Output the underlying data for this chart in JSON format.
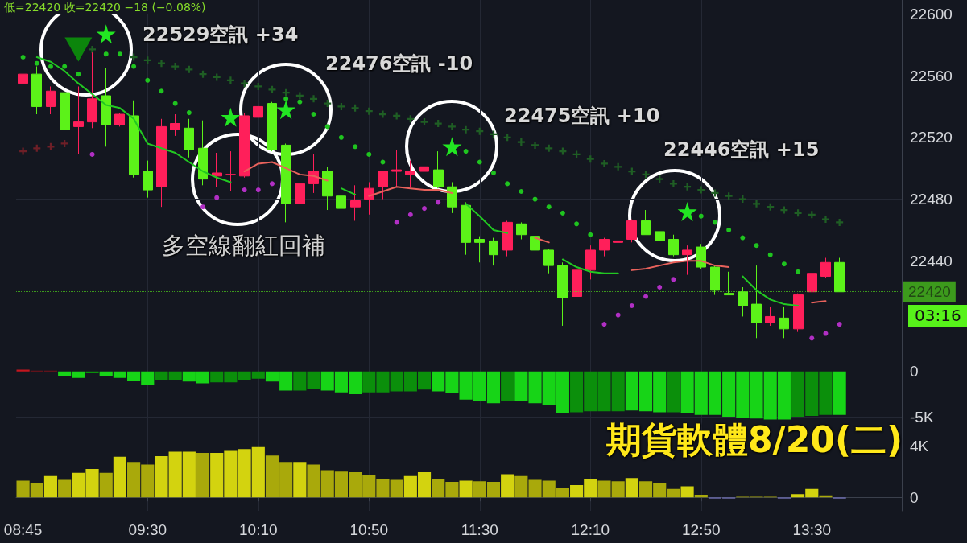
{
  "chart_data": [
    {
      "type": "candlestick",
      "categories": [
        null,
        null,
        null,
        null,
        null,
        null,
        null,
        null,
        null,
        null,
        null,
        null,
        null,
        null,
        null,
        null,
        null,
        null,
        null,
        null,
        null,
        null,
        null,
        null,
        null,
        null,
        null,
        null,
        null,
        null,
        null,
        null,
        null,
        null,
        null,
        null,
        null,
        null,
        null,
        null,
        null,
        null,
        null,
        null,
        null,
        null,
        null,
        null,
        null,
        null,
        null,
        null,
        null,
        null,
        null,
        null,
        null,
        null,
        null,
        null
      ],
      "ohlc": [
        [
          22555,
          22565,
          22528,
          22561
        ],
        [
          22561,
          22566,
          22535,
          22540
        ],
        [
          22540,
          22553,
          22535,
          22550
        ],
        [
          22549,
          22555,
          22519,
          22525
        ],
        [
          22527,
          22553,
          22509,
          22530
        ],
        [
          22530,
          22575,
          22526,
          22545
        ],
        [
          22547,
          22565,
          22514,
          22528
        ],
        [
          22528,
          22536,
          22527,
          22535
        ],
        [
          22534,
          22544,
          22494,
          22496
        ],
        [
          22498,
          22505,
          22481,
          22486
        ],
        [
          22488,
          22532,
          22475,
          22527
        ],
        [
          22525,
          22535,
          22521,
          22529
        ],
        [
          22526,
          22532,
          22507,
          22512
        ],
        [
          22513,
          22531,
          22489,
          22493
        ],
        [
          22495,
          22510,
          22488,
          22497
        ],
        [
          22496,
          22511,
          22485,
          22496
        ],
        [
          22495,
          22536,
          22494,
          22534
        ],
        [
          22533,
          22545,
          22527,
          22540
        ],
        [
          22542,
          22543,
          22511,
          22512
        ],
        [
          22515,
          22516,
          22465,
          22477
        ],
        [
          22477,
          22497,
          22470,
          22490
        ],
        [
          22490,
          22509,
          22484,
          22498
        ],
        [
          22498,
          22501,
          22473,
          22482
        ],
        [
          22482,
          22489,
          22466,
          22474
        ],
        [
          22475,
          22489,
          22466,
          22479
        ],
        [
          22480,
          22491,
          22470,
          22487
        ],
        [
          22488,
          22498,
          22480,
          22498
        ],
        [
          22498,
          22512,
          22488,
          22499
        ],
        [
          22496,
          22505,
          22488,
          22498
        ],
        [
          22498,
          22510,
          22494,
          22501
        ],
        [
          22499,
          22511,
          22487,
          22488
        ],
        [
          22488,
          22491,
          22471,
          22475
        ],
        [
          22476,
          22478,
          22444,
          22452
        ],
        [
          22454,
          22456,
          22439,
          22452
        ],
        [
          22453,
          22455,
          22437,
          22444
        ],
        [
          22447,
          22466,
          22443,
          22465
        ],
        [
          22464,
          22465,
          22454,
          22457
        ],
        [
          22456,
          22457,
          22444,
          22447
        ],
        [
          22447,
          22448,
          22432,
          22437
        ],
        [
          22437,
          22439,
          22398,
          22416
        ],
        [
          22417,
          22435,
          22414,
          22434
        ],
        [
          22434,
          22450,
          22428,
          22447
        ],
        [
          22447,
          22455,
          22443,
          22454
        ],
        [
          22452,
          22462,
          22451,
          22453
        ],
        [
          22454,
          22467,
          22452,
          22466
        ],
        [
          22466,
          22473,
          22457,
          22457
        ],
        [
          22459,
          22465,
          22453,
          22453
        ],
        [
          22454,
          22457,
          22443,
          22444
        ],
        [
          22444,
          22450,
          22431,
          22447
        ],
        [
          22449,
          22451,
          22435,
          22436
        ],
        [
          22436,
          22437,
          22418,
          22421
        ],
        [
          22419,
          22433,
          22418,
          22418
        ],
        [
          22420,
          22423,
          22404,
          22411
        ],
        [
          22412,
          22437,
          22390,
          22400
        ],
        [
          22400,
          22410,
          22398,
          22404
        ],
        [
          22403,
          22410,
          22390,
          22396
        ],
        [
          22396,
          22419,
          22394,
          22418
        ],
        [
          22420,
          22433,
          22413,
          22432
        ],
        [
          22430,
          22442,
          22429,
          22439
        ],
        [
          22439,
          22442,
          22420,
          22420
        ]
      ],
      "colors": [
        "#ff1f5a",
        "#5cf219",
        "#ff1f5a",
        "#5cf219",
        "#ff1f5a",
        "#ff1f5a",
        "#5cf219",
        "#ff1f5a",
        "#5cf219",
        "#5cf219",
        "#ff1f5a",
        "#ff1f5a",
        "#5cf219",
        "#5cf219",
        "#ff1f5a",
        "#ff1f5a",
        "#ff1f5a",
        "#ff1f5a",
        "#5cf219",
        "#5cf219",
        "#ff1f5a",
        "#ff1f5a",
        "#5cf219",
        "#5cf219",
        "#ff1f5a",
        "#ff1f5a",
        "#ff1f5a",
        "#ff1f5a",
        "#ff1f5a",
        "#ff1f5a",
        "#5cf219",
        "#5cf219",
        "#5cf219",
        "#5cf219",
        "#5cf219",
        "#ff1f5a",
        "#5cf219",
        "#5cf219",
        "#5cf219",
        "#5cf219",
        "#ff1f5a",
        "#ff1f5a",
        "#ff1f5a",
        "#ff1f5a",
        "#ff1f5a",
        "#5cf219",
        "#5cf219",
        "#5cf219",
        "#ff1f5a",
        "#5cf219",
        "#5cf219",
        "#5cf219",
        "#5cf219",
        "#5cf219",
        "#ff1f5a",
        "#5cf219",
        "#ff1f5a",
        "#ff1f5a",
        "#ff1f5a",
        "#5cf219"
      ],
      "series": [
        {
          "type": "line",
          "color": "#22c822",
          "marker": "none",
          "values": [
            null,
            22572,
            22569,
            22563,
            22555,
            22548,
            22541,
            22539,
            22532,
            22516,
            22513,
            22510,
            22504,
            22498,
            22494,
            22491,
            null,
            null,
            null,
            null,
            null,
            null,
            null,
            22487,
            22483,
            null,
            null,
            null,
            null,
            null,
            null,
            null,
            22477,
            22469,
            22460,
            22458,
            null,
            null,
            null,
            22441,
            22436,
            22433,
            22432,
            22432,
            null,
            null,
            null,
            null,
            null,
            null,
            null,
            null,
            22430,
            22421,
            22415,
            22412,
            22411,
            null,
            null,
            null
          ]
        },
        {
          "type": "line",
          "color": "#e8625c",
          "marker": "none",
          "values": [
            null,
            null,
            null,
            null,
            null,
            null,
            null,
            null,
            null,
            null,
            null,
            null,
            null,
            null,
            null,
            null,
            22498,
            22503,
            22504,
            22500,
            22496,
            22495,
            22492,
            null,
            null,
            22482,
            22485,
            22488,
            22487,
            22486,
            22486,
            22484,
            null,
            null,
            null,
            null,
            null,
            22455,
            22452,
            null,
            null,
            null,
            null,
            null,
            22434,
            22435,
            22437,
            22439,
            22440,
            22440,
            22437,
            22436,
            null,
            null,
            null,
            null,
            null,
            22413,
            22414,
            null
          ]
        },
        {
          "type": "scatter",
          "color": "#1fc41f",
          "marker": "circle",
          "values": [
            22572,
            22568,
            22566,
            22566,
            22561,
            null,
            22574,
            22574,
            22566,
            22557,
            22550,
            22542,
            22536,
            null,
            null,
            null,
            null,
            null,
            null,
            22545,
            22543,
            22535,
            22527,
            22520,
            22514,
            22509,
            22504,
            null,
            null,
            null,
            null,
            null,
            22511,
            22504,
            22497,
            22490,
            22485,
            22480,
            22475,
            22471,
            22464,
            22457,
            null,
            null,
            null,
            null,
            null,
            null,
            null,
            22469,
            22465,
            22460,
            22455,
            22450,
            22444,
            22438,
            22433,
            null,
            null,
            null
          ]
        },
        {
          "type": "scatter",
          "color": "#b12fc4",
          "marker": "circle",
          "values": [
            null,
            null,
            null,
            null,
            null,
            22509,
            null,
            null,
            null,
            null,
            null,
            null,
            null,
            22475,
            22481,
            null,
            22486,
            22486,
            22490,
            null,
            null,
            null,
            null,
            null,
            null,
            null,
            null,
            22465,
            22470,
            22474,
            22478,
            null,
            null,
            null,
            null,
            null,
            null,
            null,
            null,
            null,
            null,
            null,
            22399,
            22405,
            22411,
            22417,
            22423,
            22428,
            null,
            null,
            null,
            null,
            null,
            null,
            null,
            null,
            null,
            22390,
            22393,
            22399
          ]
        },
        {
          "type": "scatter",
          "color": "#1f5e24",
          "marker": "cross",
          "values": [
            null,
            null,
            null,
            null,
            null,
            22577,
            null,
            null,
            22572,
            22570,
            22568,
            22566,
            22564,
            22561,
            22559,
            22557,
            22555,
            22553,
            22551,
            22549,
            22547,
            22545,
            22542,
            22540,
            22539,
            22537,
            22535,
            22534,
            22532,
            22530,
            22529,
            22527,
            22525,
            22524,
            22522,
            22520,
            22517,
            22515,
            22513,
            22511,
            22509,
            22506,
            22503,
            22501,
            22498,
            22496,
            22493,
            22490,
            22488,
            22486,
            22484,
            22482,
            22480,
            22477,
            22475,
            22473,
            22471,
            22470,
            22467,
            22465
          ]
        },
        {
          "type": "scatter",
          "color": "#6e1f27",
          "marker": "cross",
          "values": [
            22511,
            22513,
            22514,
            22516,
            null,
            null,
            null,
            null,
            null,
            null,
            null,
            null,
            null,
            null,
            null,
            null,
            null,
            null,
            null,
            null,
            null,
            null,
            null,
            null,
            null,
            null,
            null,
            null,
            null,
            null,
            null,
            null,
            null,
            null,
            null,
            null,
            null,
            null,
            null,
            null,
            null,
            null,
            null,
            null,
            null,
            null,
            null,
            null,
            null,
            null,
            null,
            null,
            null,
            null,
            null,
            null,
            null,
            null,
            null,
            null
          ]
        },
        {
          "type": "scatter",
          "color": "#22e622",
          "marker": "star",
          "values": [
            null,
            null,
            null,
            null,
            null,
            null,
            22587,
            null,
            null,
            null,
            null,
            null,
            null,
            null,
            null,
            22533,
            null,
            null,
            null,
            22538,
            null,
            null,
            null,
            null,
            null,
            null,
            null,
            null,
            null,
            null,
            null,
            22514,
            null,
            null,
            null,
            null,
            null,
            null,
            null,
            null,
            null,
            null,
            null,
            null,
            null,
            null,
            null,
            null,
            22472,
            null,
            null,
            null,
            null,
            null,
            null,
            null,
            null,
            null,
            null,
            null
          ]
        },
        {
          "type": "scatter",
          "color": "#0c850c",
          "marker": "triangle",
          "values": [
            null,
            null,
            null,
            null,
            22577,
            null,
            null,
            null,
            null,
            null,
            null,
            null,
            null,
            null,
            null,
            null,
            null,
            null,
            null,
            null,
            null,
            null,
            null,
            null,
            null,
            null,
            null,
            null,
            null,
            null,
            null,
            null,
            null,
            null,
            null,
            null,
            null,
            null,
            null,
            null,
            null,
            null,
            null,
            null,
            null,
            null,
            null,
            null,
            null,
            null,
            null,
            null,
            null,
            null,
            null,
            null,
            null,
            null,
            null,
            null
          ]
        }
      ],
      "ylim": [
        22386,
        22609
      ],
      "yticks": [
        {
          "value": 22400,
          "label": null
        },
        22440,
        22480,
        22520,
        22560,
        22600
      ],
      "grid": true,
      "tick_labels": "y",
      "ref_lines": [
        {
          "axis": "y",
          "value": 22420,
          "label": "22420",
          "color": "#57f21a",
          "line_style": "dotted"
        }
      ],
      "annotations": [
        "低=22420 收=22420 −18 (−0.08%)",
        "22529空訊 +34",
        "22476空訊 -10",
        "22475空訊 +10",
        "22446空訊 +15",
        "多空線翻紅回補",
        "03:16"
      ]
    },
    {
      "type": "bar",
      "categories": [
        null,
        null,
        null,
        null,
        null,
        null,
        null,
        null,
        null,
        null,
        null,
        null,
        null,
        null,
        null,
        null,
        null,
        null,
        null,
        null,
        null,
        null,
        null,
        null,
        null,
        null,
        null,
        null,
        null,
        null,
        null,
        null,
        null,
        null,
        null,
        null,
        null,
        null,
        null,
        null,
        null,
        null,
        null,
        null,
        null,
        null,
        null,
        null,
        null,
        null,
        null,
        null,
        null,
        null,
        null,
        null,
        null,
        null,
        null,
        null
      ],
      "values": [
        200,
        100,
        100,
        -500,
        -700,
        -200,
        -500,
        -700,
        -1000,
        -1500,
        -900,
        -900,
        -1100,
        -1300,
        -1200,
        -1200,
        -900,
        -800,
        -1100,
        -2100,
        -2100,
        -1900,
        -2100,
        -2300,
        -2500,
        -2300,
        -2300,
        -2200,
        -2200,
        -2000,
        -2200,
        -2400,
        -3100,
        -3300,
        -3500,
        -3300,
        -3300,
        -3500,
        -3700,
        -4600,
        -4500,
        -4400,
        -4400,
        -4400,
        -4300,
        -4400,
        -4500,
        -4500,
        -4600,
        -4800,
        -4800,
        -5000,
        -5100,
        -5200,
        -5300,
        -5300,
        -5000,
        -4900,
        -4800,
        -4800
      ],
      "colors": [
        "#c4161e",
        "#7a1218",
        "#7a1218",
        "#17d417",
        "#17d417",
        "#0b8f0b",
        "#17d417",
        "#17d417",
        "#17d417",
        "#17d417",
        "#0b8f0b",
        "#0b8f0b",
        "#17d417",
        "#17d417",
        "#0b8f0b",
        "#0b8f0b",
        "#0b8f0b",
        "#0b8f0b",
        "#17d417",
        "#17d417",
        "#0b8f0b",
        "#0b8f0b",
        "#17d417",
        "#17d417",
        "#17d417",
        "#0b8f0b",
        "#0b8f0b",
        "#0b8f0b",
        "#0b8f0b",
        "#0b8f0b",
        "#17d417",
        "#17d417",
        "#17d417",
        "#17d417",
        "#17d417",
        "#0b8f0b",
        "#17d417",
        "#17d417",
        "#17d417",
        "#17d417",
        "#0b8f0b",
        "#0b8f0b",
        "#0b8f0b",
        "#0b8f0b",
        "#17d417",
        "#17d417",
        "#17d417",
        "#0b8f0b",
        "#17d417",
        "#17d417",
        "#17d417",
        "#17d417",
        "#17d417",
        "#17d417",
        "#17d417",
        "#17d417",
        "#0b8f0b",
        "#0b8f0b",
        "#0b8f0b",
        "#17d417"
      ],
      "ylim": [
        -6500,
        3000
      ],
      "yticks": [
        0,
        {
          "value": -5000,
          "label": "-5K"
        }
      ],
      "grid": true,
      "tick_labels": "y"
    },
    {
      "type": "bar",
      "categories": [
        "08:45",
        null,
        null,
        null,
        null,
        null,
        null,
        null,
        null,
        "09:30",
        null,
        null,
        null,
        null,
        null,
        null,
        null,
        "10:10",
        null,
        null,
        null,
        null,
        null,
        null,
        null,
        "10:50",
        null,
        null,
        null,
        null,
        null,
        null,
        null,
        "11:30",
        null,
        null,
        null,
        null,
        null,
        null,
        null,
        "12:10",
        null,
        null,
        null,
        null,
        null,
        null,
        null,
        "12:50",
        null,
        null,
        null,
        null,
        null,
        null,
        null,
        "13:30",
        null,
        null
      ],
      "values": [
        1300,
        1100,
        1650,
        1350,
        1900,
        2200,
        1900,
        3150,
        2750,
        2550,
        3200,
        3550,
        3550,
        3450,
        3450,
        3600,
        3750,
        3900,
        3250,
        2750,
        2750,
        2550,
        2100,
        2000,
        1950,
        1700,
        1450,
        1350,
        1650,
        1950,
        1450,
        1200,
        1300,
        1250,
        1200,
        1800,
        1650,
        1350,
        1300,
        700,
        950,
        1400,
        1300,
        1250,
        1500,
        1250,
        1100,
        650,
        850,
        200,
        -100,
        -100,
        50,
        50,
        50,
        -100,
        250,
        650,
        150,
        -100
      ],
      "colors": [
        "#a9a90b",
        "#a9a90b",
        "#d3d30f",
        "#a9a90b",
        "#d3d30f",
        "#d3d30f",
        "#a9a90b",
        "#d3d30f",
        "#a9a90b",
        "#a9a90b",
        "#d3d30f",
        "#d3d30f",
        "#d3d30f",
        "#a9a90b",
        "#d3d30f",
        "#d3d30f",
        "#d3d30f",
        "#d3d30f",
        "#a9a90b",
        "#a9a90b",
        "#d3d30f",
        "#a9a90b",
        "#a9a90b",
        "#a9a90b",
        "#a9a90b",
        "#a9a90b",
        "#a9a90b",
        "#a9a90b",
        "#d3d30f",
        "#d3d30f",
        "#a9a90b",
        "#a9a90b",
        "#d3d30f",
        "#a9a90b",
        "#a9a90b",
        "#d3d30f",
        "#a9a90b",
        "#a9a90b",
        "#a9a90b",
        "#a9a90b",
        "#d3d30f",
        "#d3d30f",
        "#a9a90b",
        "#a9a90b",
        "#d3d30f",
        "#a9a90b",
        "#a9a90b",
        "#a9a90b",
        "#d3d30f",
        "#a9a90b",
        "#6a6aa8",
        "#6a6aa8",
        "#a9a90b",
        "#a9a90b",
        "#a9a90b",
        "#6a6aa8",
        "#d3d30f",
        "#d3d30f",
        "#a9a90b",
        "#6a6aa8"
      ],
      "ylim": [
        -1050,
        5200
      ],
      "yticks": [
        0,
        {
          "value": 4000,
          "label": "4K"
        }
      ],
      "grid": true,
      "annotations": [
        "期貨軟體8/20(二)"
      ]
    }
  ]
}
